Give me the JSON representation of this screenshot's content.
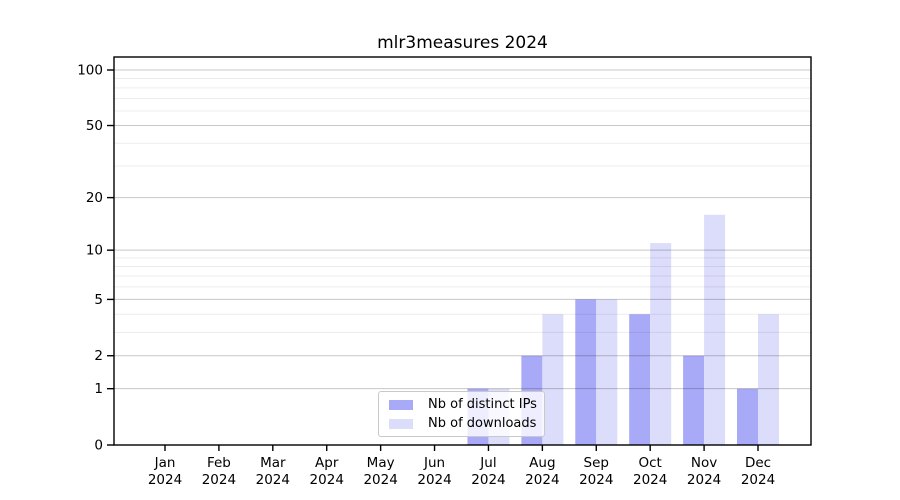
{
  "chart_data": {
    "type": "bar",
    "title": "mlr3measures 2024",
    "categories": [
      "Jan",
      "Feb",
      "Mar",
      "Apr",
      "May",
      "Jun",
      "Jul",
      "Aug",
      "Sep",
      "Oct",
      "Nov",
      "Dec"
    ],
    "x_axis": {
      "year_label": "2024"
    },
    "series": [
      {
        "name": "Nb of distinct IPs",
        "color": "#a9aaf7",
        "values": [
          0,
          0,
          0,
          0,
          0,
          0,
          1,
          2,
          5,
          4,
          2,
          1
        ]
      },
      {
        "name": "Nb of downloads",
        "color": "#dcddfb",
        "values": [
          0,
          0,
          0,
          0,
          0,
          0,
          1,
          4,
          5,
          11,
          16,
          4
        ]
      }
    ],
    "y_axis": {
      "scale": "log1p",
      "tick_values": [
        0,
        1,
        2,
        5,
        10,
        20,
        50,
        100
      ],
      "minor_gridline_values": [
        3,
        4,
        6,
        7,
        8,
        9,
        30,
        40,
        60,
        70,
        80,
        90
      ],
      "range": [
        0,
        118
      ]
    },
    "legend": {
      "position": "inside-bottom-center",
      "labels": [
        "Nb of distinct IPs",
        "Nb of downloads"
      ]
    },
    "grid": "horizontal"
  }
}
